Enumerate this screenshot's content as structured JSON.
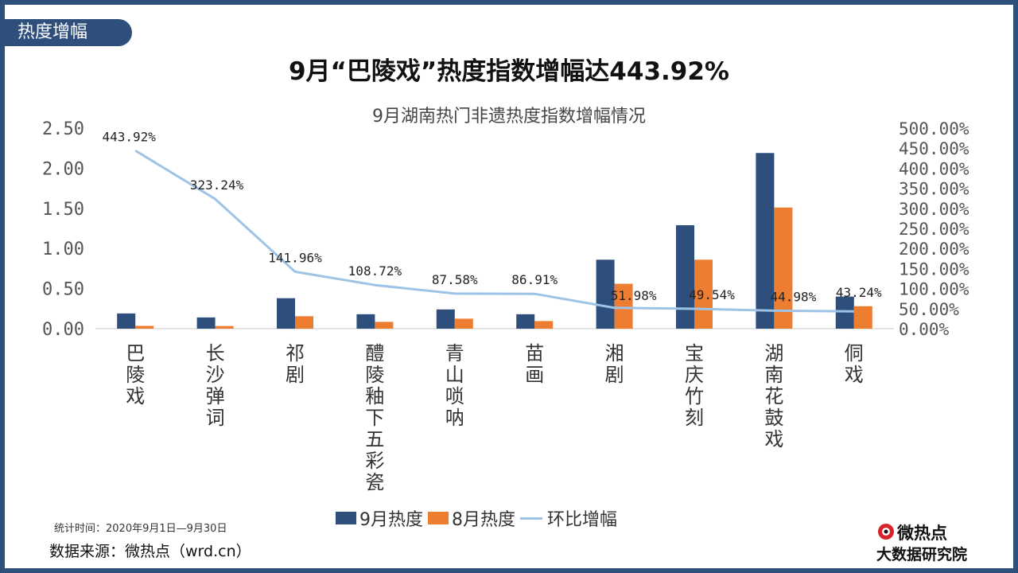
{
  "header": {
    "badge": "热度增幅",
    "title": "9月“巴陵戏”热度指数增幅达443.92%",
    "subtitle": "9月湖南热门非遗热度指数增幅情况"
  },
  "chart_data": {
    "type": "bar",
    "title": "9月湖南热门非遗热度指数增幅情况",
    "categories": [
      "巴陵戏",
      "长沙弹词",
      "祁剧",
      "醴陵釉下五彩瓷",
      "青山唢呐",
      "苗画",
      "湘剧",
      "宝庆竹刻",
      "湖南花鼓戏",
      "侗戏"
    ],
    "series": [
      {
        "name": "9月热度",
        "type": "bar",
        "axis": "left",
        "color": "#2e4f7c",
        "values": [
          0.19,
          0.14,
          0.38,
          0.18,
          0.24,
          0.18,
          0.86,
          1.29,
          2.19,
          0.4
        ]
      },
      {
        "name": "8月热度",
        "type": "bar",
        "axis": "left",
        "color": "#ed7d31",
        "values": [
          0.035,
          0.033,
          0.155,
          0.085,
          0.125,
          0.095,
          0.56,
          0.86,
          1.51,
          0.28
        ]
      },
      {
        "name": "环比增幅",
        "type": "line",
        "axis": "right",
        "color": "#9dc3e6",
        "values": [
          443.92,
          323.24,
          141.96,
          108.72,
          87.58,
          86.91,
          51.98,
          49.54,
          44.98,
          43.24
        ],
        "labels": [
          "443.92%",
          "323.24%",
          "141.96%",
          "108.72%",
          "87.58%",
          "86.91%",
          "51.98%",
          "49.54%",
          "44.98%",
          "43.24%"
        ]
      }
    ],
    "left_axis": {
      "ylim": [
        0,
        2.5
      ],
      "ticks": [
        "0.00",
        "0.50",
        "1.00",
        "1.50",
        "2.00",
        "2.50"
      ]
    },
    "right_axis": {
      "ylim": [
        0,
        500
      ],
      "ticks": [
        "0.00%",
        "50.00%",
        "100.00%",
        "150.00%",
        "200.00%",
        "250.00%",
        "300.00%",
        "350.00%",
        "400.00%",
        "450.00%",
        "500.00%"
      ]
    },
    "grid": false,
    "legend": "bottom"
  },
  "footer": {
    "note": "统计时间：2020年9月1日—9月30日",
    "source": "数据来源：微热点（wrd.cn）",
    "brand": "微热点",
    "institute": "大数据研究院"
  },
  "colors": {
    "frame": "#2e4f7c",
    "bar_sep": "#2e4f7c",
    "bar_aug": "#ed7d31",
    "line": "#9dc3e6"
  }
}
